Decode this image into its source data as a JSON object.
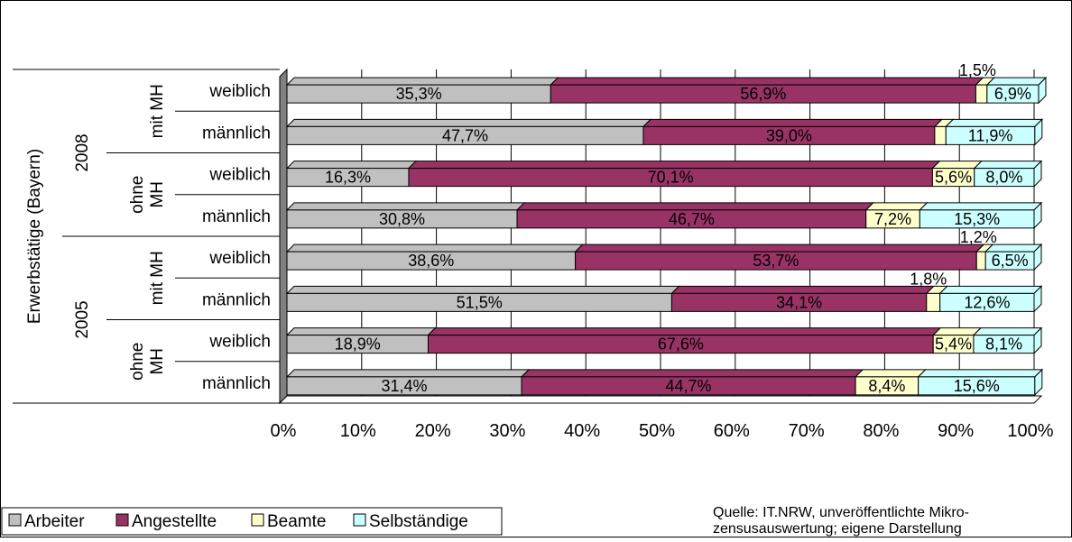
{
  "chart_data": {
    "type": "bar",
    "stacked": true,
    "orientation": "horizontal",
    "percent_scale": true,
    "y_axis_label": "Erwerbstätige (Bayern)",
    "x_ticks": [
      "0%",
      "10%",
      "20%",
      "30%",
      "40%",
      "50%",
      "60%",
      "70%",
      "80%",
      "90%",
      "100%"
    ],
    "xlim": [
      0,
      100
    ],
    "grid": "vertical",
    "legend_position": "bottom-left",
    "series": [
      {
        "name": "Arbeiter",
        "color": "#c0c0c0"
      },
      {
        "name": "Angestellte",
        "color": "#993366"
      },
      {
        "name": "Beamte",
        "color": "#ffffcc"
      },
      {
        "name": "Selbständige",
        "color": "#ccffff"
      }
    ],
    "groups": [
      {
        "label": "2008",
        "subgroups": [
          {
            "label": "mit MH",
            "rows": [
              {
                "label": "weiblich",
                "values": [
                  35.3,
                  56.9,
                  1.5,
                  6.9
                ],
                "labels": [
                  "35,3%",
                  "56,9%",
                  "1,5%",
                  "6,9%"
                ]
              },
              {
                "label": "männlich",
                "values": [
                  47.7,
                  39.0,
                  1.5,
                  11.9
                ],
                "labels": [
                  "47,7%",
                  "39,0%",
                  "",
                  "11,9%"
                ]
              }
            ]
          },
          {
            "label": "ohne MH",
            "rows": [
              {
                "label": "weiblich",
                "values": [
                  16.3,
                  70.1,
                  5.6,
                  8.0
                ],
                "labels": [
                  "16,3%",
                  "70,1%",
                  "5,6%",
                  "8,0%"
                ]
              },
              {
                "label": "männlich",
                "values": [
                  30.8,
                  46.7,
                  7.2,
                  15.3
                ],
                "labels": [
                  "30,8%",
                  "46,7%",
                  "7,2%",
                  "15,3%"
                ]
              }
            ]
          }
        ]
      },
      {
        "label": "2005",
        "subgroups": [
          {
            "label": "mit MH",
            "rows": [
              {
                "label": "weiblich",
                "values": [
                  38.6,
                  53.7,
                  1.2,
                  6.5
                ],
                "labels": [
                  "38,6%",
                  "53,7%",
                  "1,2%",
                  "6,5%"
                ]
              },
              {
                "label": "männlich",
                "values": [
                  51.5,
                  34.1,
                  1.8,
                  12.6
                ],
                "labels": [
                  "51,5%",
                  "34,1%",
                  "1,8%",
                  "12,6%"
                ]
              }
            ]
          },
          {
            "label": "ohne MH",
            "rows": [
              {
                "label": "weiblich",
                "values": [
                  18.9,
                  67.6,
                  5.4,
                  8.1
                ],
                "labels": [
                  "18,9%",
                  "67,6%",
                  "5,4%",
                  "8,1%"
                ]
              },
              {
                "label": "männlich",
                "values": [
                  31.4,
                  44.7,
                  8.4,
                  15.6
                ],
                "labels": [
                  "31,4%",
                  "44,7%",
                  "8,4%",
                  "15,6%"
                ]
              }
            ]
          }
        ]
      }
    ],
    "source_note": [
      "Quelle: IT.NRW, unveröffentlichte Mikro-",
      "zensusauswertung; eigene Darstellung"
    ]
  }
}
